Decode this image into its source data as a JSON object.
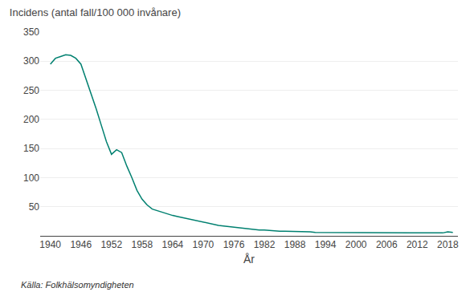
{
  "chart_data": {
    "type": "line",
    "title": "Incidens (antal fall/100 000 invånare)",
    "x_label": "År",
    "annotations": [
      "Källa: Folkhälsomyndigheten"
    ],
    "color": "#008070",
    "grid": true,
    "xlim": [
      1938,
      2020
    ],
    "xticks": [
      1940,
      1946,
      1952,
      1958,
      1964,
      1970,
      1976,
      1982,
      1988,
      1994,
      2000,
      2006,
      2012,
      2018
    ],
    "ylim": [
      0,
      350
    ],
    "yticks": [
      50,
      100,
      150,
      200,
      250,
      300,
      350
    ],
    "x": [
      1940,
      1941,
      1942,
      1943,
      1944,
      1945,
      1946,
      1947,
      1948,
      1949,
      1950,
      1951,
      1952,
      1953,
      1954,
      1955,
      1956,
      1957,
      1958,
      1959,
      1960,
      1961,
      1962,
      1963,
      1964,
      1965,
      1966,
      1967,
      1968,
      1969,
      1970,
      1971,
      1972,
      1973,
      1974,
      1975,
      1976,
      1977,
      1978,
      1979,
      1980,
      1981,
      1982,
      1983,
      1984,
      1985,
      1986,
      1987,
      1988,
      1989,
      1990,
      1991,
      1992,
      1993,
      1994,
      1995,
      1996,
      1997,
      1998,
      1999,
      2000,
      2001,
      2002,
      2003,
      2004,
      2005,
      2006,
      2007,
      2008,
      2009,
      2010,
      2011,
      2012,
      2013,
      2014,
      2015,
      2016,
      2017,
      2018,
      2019
    ],
    "values": [
      295,
      305,
      308,
      311,
      310,
      305,
      295,
      270,
      245,
      218,
      190,
      162,
      140,
      148,
      143,
      120,
      100,
      78,
      63,
      53,
      46,
      43,
      40,
      37,
      35,
      33,
      31,
      29,
      27,
      25,
      23,
      22,
      20,
      18,
      17,
      16,
      15,
      14,
      13,
      12,
      11,
      10,
      10,
      9,
      9,
      8,
      8,
      8,
      8,
      7,
      7,
      7,
      6,
      6,
      6,
      6,
      5,
      5,
      5,
      5,
      5,
      5,
      5,
      5,
      5,
      5,
      5,
      5,
      5,
      5,
      5,
      5,
      5,
      5,
      5,
      5,
      5,
      5,
      7,
      6
    ]
  }
}
